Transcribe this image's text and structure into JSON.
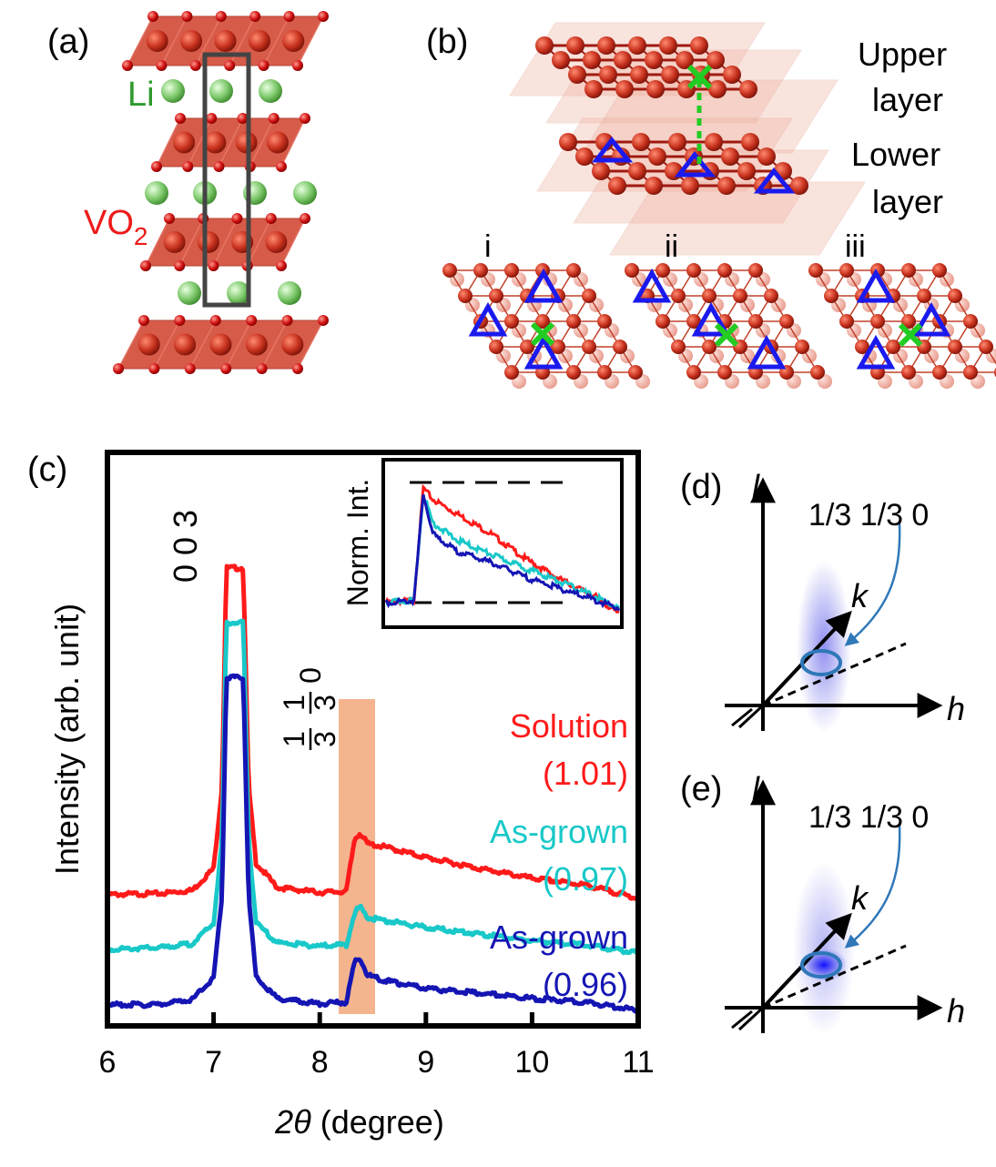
{
  "panel_a": {
    "label": "(a)",
    "li_label": "Li",
    "vo2_label": "VO",
    "vo2_sub": "2",
    "colors": {
      "vanadium": "#c8321e",
      "oxygen": "#cc1010",
      "lithium": "#7cc86a",
      "octahedra": "#d24a36"
    }
  },
  "panel_b": {
    "label": "(b)",
    "upper_1": "Upper",
    "upper_2": "layer",
    "lower_1": "Lower",
    "lower_2": "layer",
    "sub_labels": [
      "i",
      "ii",
      "iii"
    ],
    "colors": {
      "triangle": "#1a1aee",
      "cross": "#22cc22"
    }
  },
  "panel_c": {
    "label": "(c)",
    "peak_003": "0 0 3",
    "peak_1": "1",
    "peak_3": "3",
    "peak_0": "0",
    "inset_ylabel": "Norm. Int.",
    "highlight_color": "#f2a77a"
  },
  "panel_d": {
    "label": "(d)",
    "axis_l": "l",
    "axis_k": "k",
    "axis_h": "h",
    "annotation": "1/3 1/3 0"
  },
  "panel_e": {
    "label": "(e)",
    "axis_l": "l",
    "axis_k": "k",
    "axis_h": "h",
    "annotation": "1/3 1/3 0"
  },
  "chart_data": {
    "type": "line",
    "xlabel_italic": "2θ",
    "xlabel_rest": " (degree)",
    "ylabel": "Intensity (arb. unit)",
    "xlim": [
      6,
      11
    ],
    "xticks": [
      "6",
      "7",
      "8",
      "9",
      "10",
      "11"
    ],
    "series": [
      {
        "name": "Solution",
        "value": "(1.01)",
        "color": "#ff1a1a",
        "offset": 2.0,
        "x": [
          6.0,
          6.5,
          6.8,
          7.0,
          7.08,
          7.12,
          7.2,
          7.28,
          7.33,
          7.4,
          7.6,
          8.0,
          8.25,
          8.33,
          8.38,
          8.45,
          8.6,
          9.0,
          9.5,
          10.0,
          10.5,
          11.0
        ],
        "y": [
          0.02,
          0.04,
          0.1,
          0.5,
          2.0,
          6.0,
          6.0,
          6.0,
          2.0,
          0.6,
          0.15,
          0.06,
          0.08,
          1.05,
          1.15,
          0.95,
          0.9,
          0.7,
          0.5,
          0.32,
          0.2,
          -0.05
        ]
      },
      {
        "name": "As-grown",
        "value": "(0.97)",
        "color": "#19c8c8",
        "offset": 1.0,
        "x": [
          6.0,
          6.5,
          6.8,
          7.0,
          7.08,
          7.12,
          7.2,
          7.28,
          7.33,
          7.4,
          7.6,
          8.0,
          8.25,
          8.33,
          8.38,
          8.45,
          8.6,
          9.0,
          9.5,
          10.0,
          10.5,
          11.0
        ],
        "y": [
          0.02,
          0.05,
          0.12,
          0.5,
          2.0,
          6.0,
          6.0,
          6.0,
          2.0,
          0.5,
          0.14,
          0.08,
          0.1,
          0.7,
          0.8,
          0.6,
          0.55,
          0.42,
          0.3,
          0.18,
          0.1,
          -0.05
        ]
      },
      {
        "name": "As-grown",
        "value": "(0.96)",
        "color": "#1515b4",
        "offset": 0.0,
        "x": [
          6.0,
          6.5,
          6.8,
          7.0,
          7.08,
          7.12,
          7.2,
          7.28,
          7.33,
          7.4,
          7.6,
          8.0,
          8.25,
          8.33,
          8.38,
          8.45,
          8.6,
          9.0,
          9.5,
          10.0,
          10.5,
          11.0
        ],
        "y": [
          0.0,
          0.01,
          0.1,
          0.5,
          2.0,
          6.0,
          6.0,
          6.0,
          2.0,
          0.5,
          0.12,
          0.02,
          0.05,
          0.8,
          0.85,
          0.55,
          0.45,
          0.3,
          0.22,
          0.12,
          0.05,
          -0.1
        ]
      }
    ],
    "inset": {
      "series": [
        {
          "color": "#ff1a1a",
          "x": [
            0.0,
            0.12,
            0.16,
            0.2,
            0.3,
            0.45,
            0.6,
            0.75,
            0.9,
            1.0
          ],
          "y": [
            0.0,
            0.02,
            1.0,
            0.9,
            0.78,
            0.6,
            0.38,
            0.2,
            0.05,
            -0.1
          ]
        },
        {
          "color": "#19c8c8",
          "x": [
            0.0,
            0.12,
            0.16,
            0.2,
            0.3,
            0.45,
            0.6,
            0.75,
            0.9,
            1.0
          ],
          "y": [
            0.0,
            0.02,
            0.95,
            0.7,
            0.55,
            0.42,
            0.3,
            0.18,
            0.05,
            -0.05
          ]
        },
        {
          "color": "#1515b4",
          "x": [
            0.0,
            0.12,
            0.16,
            0.2,
            0.3,
            0.45,
            0.6,
            0.75,
            0.9,
            1.0
          ],
          "y": [
            0.0,
            0.02,
            0.95,
            0.6,
            0.45,
            0.35,
            0.22,
            0.12,
            0.02,
            -0.05
          ]
        }
      ]
    }
  }
}
